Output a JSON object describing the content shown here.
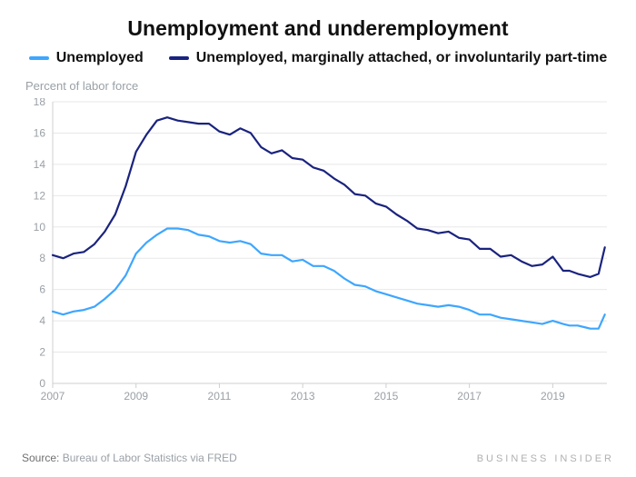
{
  "chart": {
    "type": "line",
    "title": "Unemployment and underemployment",
    "title_fontsize": 23,
    "ylabel": "Percent of labor force",
    "label_fontsize": 13,
    "background_color": "#ffffff",
    "grid_color": "#e8e8e8",
    "axis_color": "#cfcfcf",
    "tick_color": "#9aa0a6",
    "xlim": [
      2007,
      2020.3
    ],
    "ylim": [
      0,
      18
    ],
    "ytick_step": 2,
    "yticks": [
      0,
      2,
      4,
      6,
      8,
      10,
      12,
      14,
      16,
      18
    ],
    "xticks": [
      2007,
      2009,
      2011,
      2013,
      2015,
      2017,
      2019
    ],
    "legend": {
      "items": [
        {
          "label": "Unemployed",
          "color": "#3ea6ff"
        },
        {
          "label": "Unemployed, marginally attached, or involuntarily part-time",
          "color": "#1a237e"
        }
      ]
    },
    "line_width": 2.2,
    "series": [
      {
        "name": "u6",
        "color": "#1a237e",
        "x": [
          2007.0,
          2007.25,
          2007.5,
          2007.75,
          2008.0,
          2008.25,
          2008.5,
          2008.75,
          2009.0,
          2009.25,
          2009.5,
          2009.75,
          2010.0,
          2010.25,
          2010.5,
          2010.75,
          2011.0,
          2011.25,
          2011.5,
          2011.75,
          2012.0,
          2012.25,
          2012.5,
          2012.75,
          2013.0,
          2013.25,
          2013.5,
          2013.75,
          2014.0,
          2014.25,
          2014.5,
          2014.75,
          2015.0,
          2015.25,
          2015.5,
          2015.75,
          2016.0,
          2016.25,
          2016.5,
          2016.75,
          2017.0,
          2017.25,
          2017.5,
          2017.75,
          2018.0,
          2018.25,
          2018.5,
          2018.75,
          2019.0,
          2019.25,
          2019.4,
          2019.6,
          2019.75,
          2019.9,
          2020.1,
          2020.25
        ],
        "y": [
          8.2,
          8.0,
          8.3,
          8.4,
          8.9,
          9.7,
          10.8,
          12.6,
          14.8,
          15.9,
          16.8,
          17.0,
          16.8,
          16.7,
          16.6,
          16.6,
          16.1,
          15.9,
          16.3,
          16.0,
          15.1,
          14.7,
          14.9,
          14.4,
          14.3,
          13.8,
          13.6,
          13.1,
          12.7,
          12.1,
          12.0,
          11.5,
          11.3,
          10.8,
          10.4,
          9.9,
          9.8,
          9.6,
          9.7,
          9.3,
          9.2,
          8.6,
          8.6,
          8.1,
          8.2,
          7.8,
          7.5,
          7.6,
          8.1,
          7.2,
          7.2,
          7.0,
          6.9,
          6.8,
          7.0,
          8.7
        ]
      },
      {
        "name": "u3",
        "color": "#3ea6ff",
        "x": [
          2007.0,
          2007.25,
          2007.5,
          2007.75,
          2008.0,
          2008.25,
          2008.5,
          2008.75,
          2009.0,
          2009.25,
          2009.5,
          2009.75,
          2010.0,
          2010.25,
          2010.5,
          2010.75,
          2011.0,
          2011.25,
          2011.5,
          2011.75,
          2012.0,
          2012.25,
          2012.5,
          2012.75,
          2013.0,
          2013.25,
          2013.5,
          2013.75,
          2014.0,
          2014.25,
          2014.5,
          2014.75,
          2015.0,
          2015.25,
          2015.5,
          2015.75,
          2016.0,
          2016.25,
          2016.5,
          2016.75,
          2017.0,
          2017.25,
          2017.5,
          2017.75,
          2018.0,
          2018.25,
          2018.5,
          2018.75,
          2019.0,
          2019.25,
          2019.4,
          2019.6,
          2019.75,
          2019.9,
          2020.1,
          2020.25
        ],
        "y": [
          4.6,
          4.4,
          4.6,
          4.7,
          4.9,
          5.4,
          6.0,
          6.9,
          8.3,
          9.0,
          9.5,
          9.9,
          9.9,
          9.8,
          9.5,
          9.4,
          9.1,
          9.0,
          9.1,
          8.9,
          8.3,
          8.2,
          8.2,
          7.8,
          7.9,
          7.5,
          7.5,
          7.2,
          6.7,
          6.3,
          6.2,
          5.9,
          5.7,
          5.5,
          5.3,
          5.1,
          5.0,
          4.9,
          5.0,
          4.9,
          4.7,
          4.4,
          4.4,
          4.2,
          4.1,
          4.0,
          3.9,
          3.8,
          4.0,
          3.8,
          3.7,
          3.7,
          3.6,
          3.5,
          3.5,
          4.4
        ]
      }
    ],
    "source_label": "Source:",
    "source_text": "Bureau of Labor Statistics via FRED",
    "brand": "BUSINESS INSIDER"
  }
}
